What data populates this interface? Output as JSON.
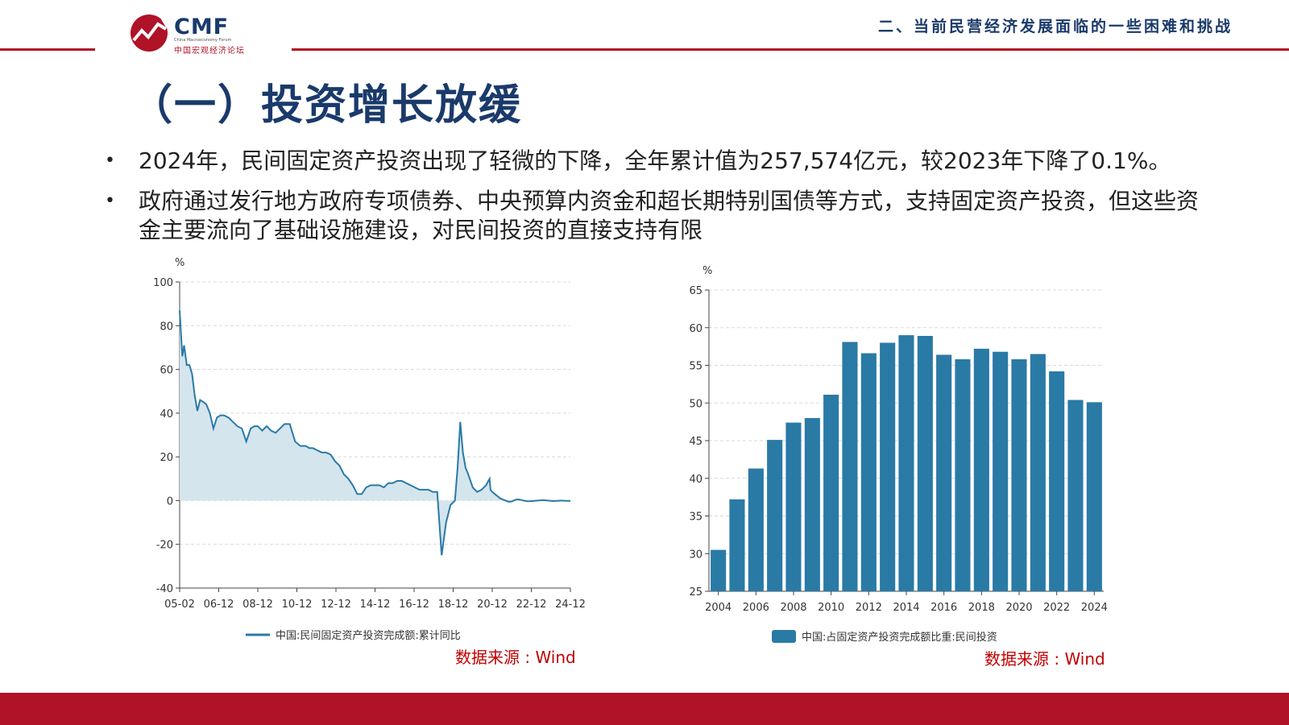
{
  "header": {
    "logo_text": "CMF",
    "logo_sub_en": "China Macroeconomy Forum",
    "logo_sub_cn": "中国宏观经济论坛",
    "section_title": "二、当前民营经济发展面临的一些困难和挑战"
  },
  "page_title": "（一）投资增长放缓",
  "bullets": [
    "2024年，民间固定资产投资出现了轻微的下降，全年累计值为257,574亿元，较2023年下降了0.1%。",
    "政府通过发行地方政府专项债券、中央预算内资金和超长期特别国债等方式，支持固定资产投资，但这些资金主要流向了基础设施建设，对民间投资的直接支持有限"
  ],
  "bullet_marker": "•",
  "colors": {
    "brand_red": "#b01227",
    "navy": "#1a3a6b",
    "series": "#2a7aa6",
    "area_fill": "#d5e5ee",
    "source_red": "#c00000"
  },
  "chart_data": [
    {
      "type": "area",
      "ylabel": "%",
      "ylim": [
        -40,
        100
      ],
      "yticks": [
        100,
        80,
        60,
        40,
        20,
        0,
        -20,
        -40
      ],
      "xticks": [
        "05-02",
        "06-12",
        "08-12",
        "10-12",
        "12-12",
        "14-12",
        "16-12",
        "18-12",
        "20-12",
        "22-12",
        "24-12"
      ],
      "grid": "horizontal dashed",
      "legend": "bottom",
      "series": [
        {
          "name": "中国:民间固定资产投资完成额:累计同比",
          "x": [
            0,
            0.3,
            0.5,
            0.8,
            1.1,
            1.4,
            1.7,
            2.0,
            2.3,
            2.7,
            3.0,
            3.4,
            3.8,
            4.2,
            4.6,
            5.0,
            5.5,
            6.0,
            6.5,
            7.0,
            7.5,
            8.0,
            8.4,
            8.8,
            9.3,
            9.8,
            10.3,
            10.8,
            11.3,
            11.8,
            12.4,
            13.0,
            13.6,
            14.2,
            14.6,
            15.0,
            15.5,
            16.0,
            16.5,
            17.0,
            17.5,
            18.0,
            18.5,
            19.0,
            19.5,
            20.0,
            20.5,
            21.0,
            21.5,
            22.0,
            22.5,
            23.0,
            23.5,
            24.0,
            24.5,
            25.0,
            25.5,
            26.0,
            26.5,
            27.0,
            27.5,
            28.0,
            28.5,
            29.0,
            29.5,
            30.0,
            30.5,
            31.0,
            31.3,
            31.6,
            31.9,
            32.2,
            32.5,
            33.0,
            33.5,
            34.0,
            34.5,
            34.9,
            35.0,
            35.2,
            35.5,
            35.8,
            36.1,
            36.4,
            36.7,
            37.0,
            37.3,
            37.6,
            37.9,
            38.3,
            38.7,
            39.2,
            39.7,
            40.3,
            40.9,
            41.5,
            42.0,
            42.5,
            43.0,
            43.5,
            44.0
          ],
          "values": [
            87,
            66,
            71,
            62,
            62,
            58,
            48,
            41,
            46,
            45,
            44,
            40,
            33,
            38,
            39,
            39,
            38,
            36,
            34,
            33,
            27,
            33,
            34,
            34,
            32,
            34,
            32,
            31,
            33,
            35,
            35,
            27,
            25,
            25,
            24,
            24,
            23,
            22,
            22,
            21,
            18,
            16,
            12,
            10,
            7,
            3,
            3,
            6,
            7,
            7,
            7,
            6,
            8,
            8,
            9,
            9,
            8,
            7,
            6,
            5,
            5,
            5,
            4,
            4,
            -25,
            -10,
            -2,
            0,
            15,
            36,
            22,
            15,
            12,
            6,
            4,
            5,
            7,
            10,
            5,
            4,
            3,
            2,
            1,
            0.5,
            0,
            -0.5,
            -0.5,
            0,
            0.5,
            0.5,
            0,
            -0.3,
            -0.2,
            0,
            0.2,
            0,
            -0.2,
            -0.1,
            0,
            -0.1,
            -0.1
          ]
        }
      ]
    },
    {
      "type": "bar",
      "ylabel": "%",
      "ylim": [
        25,
        65
      ],
      "yticks": [
        65,
        60,
        55,
        50,
        45,
        40,
        35,
        30,
        25
      ],
      "xticks": [
        "2004",
        "2006",
        "2008",
        "2010",
        "2012",
        "2014",
        "2016",
        "2018",
        "2020",
        "2022",
        "2024"
      ],
      "categories": [
        "2004",
        "2005",
        "2006",
        "2007",
        "2008",
        "2009",
        "2010",
        "2011",
        "2012",
        "2013",
        "2014",
        "2015",
        "2016",
        "2017",
        "2018",
        "2019",
        "2020",
        "2021",
        "2022",
        "2023",
        "2024"
      ],
      "grid": "horizontal dashed",
      "legend": "bottom",
      "series": [
        {
          "name": "中国:占固定资产投资完成额比重:民间投资",
          "values": [
            30.5,
            37.2,
            41.3,
            45.1,
            47.4,
            48.0,
            51.1,
            58.1,
            56.6,
            58.0,
            59.0,
            58.9,
            56.4,
            55.8,
            57.2,
            56.8,
            55.8,
            56.5,
            54.2,
            50.4,
            50.1
          ]
        }
      ]
    }
  ],
  "sources": [
    "数据来源 : Wind",
    "数据来源 : Wind"
  ]
}
